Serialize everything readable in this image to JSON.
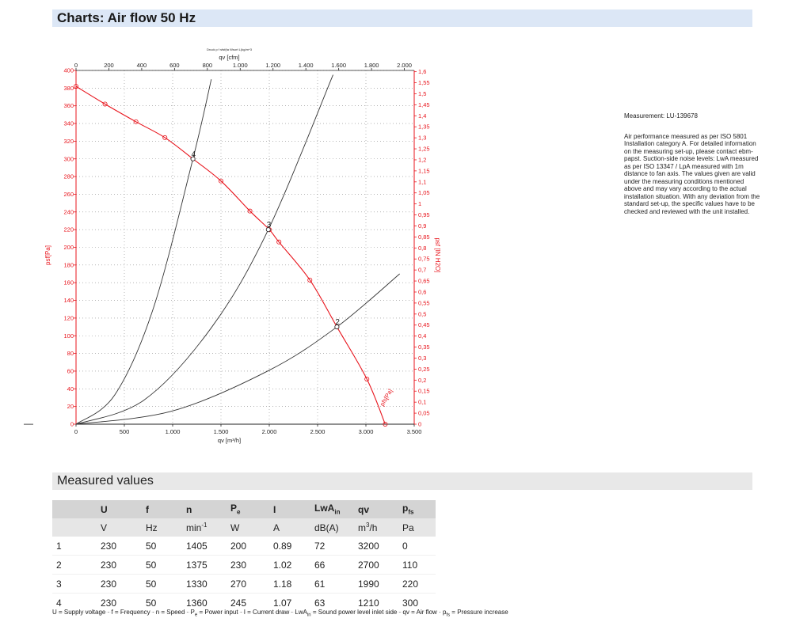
{
  "header": {
    "title": "Charts: Air flow 50 Hz"
  },
  "side_note": {
    "measurement": "Measurement: LU-139678",
    "text": "Air performance measured as per ISO 5801 Installation category A. For detailed information on the measuring set-up, please contact ebm-papst. Suction-side noise levels: LwA measured as per ISO 13347 / LpA measured with 1m distance to fan axis. The values given are valid under the measuring conditions mentioned above and may vary according to the actual installation situation. With any deviation from the standard set-up, the specific values have to be checked and reviewed with the unit installed."
  },
  "chart_data": {
    "type": "line",
    "tiny_caption": "Druck p f sfsf(ta Wsort L(kg/m^3",
    "top_axis_label": "qv [cfm]",
    "x_top_ticks": [
      "0",
      "200",
      "400",
      "600",
      "800",
      "1.000",
      "1.200",
      "1.400",
      "1.600",
      "1.800",
      "2.000"
    ],
    "xlabel": "qv [m³/h]",
    "x_ticks": [
      "0",
      "500",
      "1.000",
      "1.500",
      "2.000",
      "2.500",
      "3.000",
      "3.500"
    ],
    "ylabel": "psf[Pa]",
    "y_ticks": [
      "0",
      "20",
      "40",
      "60",
      "80",
      "100",
      "120",
      "140",
      "160",
      "180",
      "200",
      "220",
      "240",
      "260",
      "280",
      "300",
      "320",
      "340",
      "360",
      "380",
      "400"
    ],
    "y_right_label": "psf [IN H2O]",
    "y_right_ticks": [
      "0",
      "0,05",
      "0,1",
      "0,15",
      "0,2",
      "0,25",
      "0,3",
      "0,35",
      "0,4",
      "0,45",
      "0,5",
      "0,55",
      "0,6",
      "0,65",
      "0,7",
      "0,75",
      "0,8",
      "0,85",
      "0,9",
      "0,95",
      "1",
      "1,05",
      "1,1",
      "1,15",
      "1,2",
      "1,25",
      "1,3",
      "1,35",
      "1,4",
      "1,45",
      "1,5",
      "1,55",
      "1,6"
    ],
    "xlim": [
      0,
      3500
    ],
    "ylim": [
      0,
      400
    ],
    "fan_curve": {
      "name": "pfs[Pa]",
      "color": "#e8141c",
      "x": [
        0,
        300,
        620,
        920,
        1210,
        1500,
        1800,
        2000,
        2100,
        2420,
        2700,
        3010,
        3200
      ],
      "y": [
        382,
        362,
        342,
        324,
        300,
        275,
        241,
        220,
        206,
        163,
        110,
        51,
        0
      ]
    },
    "system_curves": [
      {
        "label": "4",
        "color": "#333333",
        "x": [
          0,
          400,
          800,
          1210,
          1400
        ],
        "y": [
          0,
          33,
          131,
          300,
          390
        ]
      },
      {
        "label": "3",
        "color": "#333333",
        "x": [
          0,
          700,
          1400,
          1990,
          2660
        ],
        "y": [
          0,
          27,
          109,
          220,
          395
        ]
      },
      {
        "label": "2",
        "color": "#333333",
        "x": [
          0,
          1000,
          2000,
          2700,
          3350
        ],
        "y": [
          0,
          15,
          61,
          110,
          170
        ]
      }
    ],
    "operating_points": [
      {
        "label": "4",
        "x": 1210,
        "y": 300
      },
      {
        "label": "3",
        "x": 1990,
        "y": 220
      },
      {
        "label": "2",
        "x": 2700,
        "y": 110
      }
    ],
    "grid": true
  },
  "dash_mark": "—",
  "measured": {
    "title": "Measured values",
    "headers": [
      "",
      "U",
      "f",
      "n",
      "Pe",
      "I",
      "LwAin",
      "qv",
      "pfs"
    ],
    "units": [
      "",
      "V",
      "Hz",
      "min-1",
      "W",
      "A",
      "dB(A)",
      "m3/h",
      "Pa"
    ],
    "rows": [
      [
        "1",
        "230",
        "50",
        "1405",
        "200",
        "0.89",
        "72",
        "3200",
        "0"
      ],
      [
        "2",
        "230",
        "50",
        "1375",
        "230",
        "1.02",
        "66",
        "2700",
        "110"
      ],
      [
        "3",
        "230",
        "50",
        "1330",
        "270",
        "1.18",
        "61",
        "1990",
        "220"
      ],
      [
        "4",
        "230",
        "50",
        "1360",
        "245",
        "1.07",
        "63",
        "1210",
        "300"
      ]
    ],
    "footnote": "U = Supply voltage · f = Frequency · n = Speed · Pe = Power input · I = Current draw · LwAin = Sound power level inlet side · qv = Air flow · pfs = Pressure increase"
  }
}
